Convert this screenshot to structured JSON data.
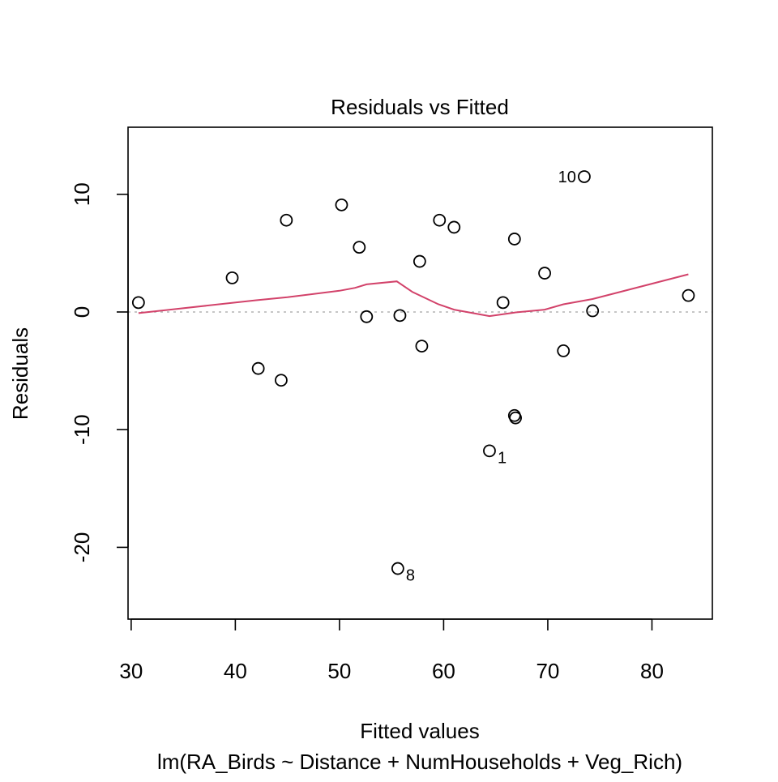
{
  "chart_data": {
    "type": "scatter",
    "title": "Residuals vs Fitted",
    "xlabel": "Fitted values",
    "subtitle": "lm(RA_Birds ~ Distance + NumHouseholds + Veg_Rich)",
    "ylabel": "Residuals",
    "xlim": [
      29.7,
      85.8
    ],
    "ylim": [
      -26.1,
      15.7
    ],
    "x_ticks": [
      30,
      40,
      50,
      60,
      70,
      80
    ],
    "x_tick_labels": [
      "30",
      "40",
      "50",
      "60",
      "70",
      "80"
    ],
    "y_ticks": [
      -20,
      -10,
      0,
      10
    ],
    "y_tick_labels": [
      "-20",
      "-10",
      "0",
      "10"
    ],
    "reference_line": {
      "y": 0,
      "style": "dotted",
      "color": "#b3b3b3"
    },
    "grid": false,
    "points": [
      {
        "x": 30.7,
        "y": 0.8
      },
      {
        "x": 39.7,
        "y": 2.9
      },
      {
        "x": 42.2,
        "y": -4.8
      },
      {
        "x": 44.4,
        "y": -5.8
      },
      {
        "x": 44.9,
        "y": 7.8
      },
      {
        "x": 50.2,
        "y": 9.1
      },
      {
        "x": 51.9,
        "y": 5.5
      },
      {
        "x": 52.6,
        "y": -0.4
      },
      {
        "x": 55.6,
        "y": -21.8,
        "label": "8"
      },
      {
        "x": 55.8,
        "y": -0.3
      },
      {
        "x": 57.7,
        "y": 4.3
      },
      {
        "x": 57.9,
        "y": -2.9
      },
      {
        "x": 59.6,
        "y": 7.8
      },
      {
        "x": 61.0,
        "y": 7.2
      },
      {
        "x": 64.4,
        "y": -11.8,
        "label": "1"
      },
      {
        "x": 65.7,
        "y": 0.8
      },
      {
        "x": 66.8,
        "y": 6.2
      },
      {
        "x": 66.8,
        "y": -8.8
      },
      {
        "x": 66.9,
        "y": -9.0
      },
      {
        "x": 69.7,
        "y": 3.3
      },
      {
        "x": 71.5,
        "y": -3.3
      },
      {
        "x": 73.5,
        "y": 11.5,
        "label": "10"
      },
      {
        "x": 74.3,
        "y": 0.1
      },
      {
        "x": 83.5,
        "y": 1.4
      }
    ],
    "smooth_line": {
      "color": "#d2426a",
      "points": [
        {
          "x": 30.7,
          "y": -0.1
        },
        {
          "x": 42.0,
          "y": 1.0
        },
        {
          "x": 45.0,
          "y": 1.25
        },
        {
          "x": 50.0,
          "y": 1.8
        },
        {
          "x": 51.5,
          "y": 2.05
        },
        {
          "x": 52.6,
          "y": 2.35
        },
        {
          "x": 55.5,
          "y": 2.6
        },
        {
          "x": 57.0,
          "y": 1.7
        },
        {
          "x": 59.5,
          "y": 0.65
        },
        {
          "x": 61.0,
          "y": 0.2
        },
        {
          "x": 64.4,
          "y": -0.35
        },
        {
          "x": 66.8,
          "y": -0.05
        },
        {
          "x": 69.7,
          "y": 0.2
        },
        {
          "x": 71.5,
          "y": 0.65
        },
        {
          "x": 74.3,
          "y": 1.1
        },
        {
          "x": 83.5,
          "y": 3.2
        }
      ]
    },
    "colors": {
      "points": "#000000",
      "axis": "#000000",
      "smooth": "#d2426a",
      "reference": "#b3b3b3"
    }
  }
}
